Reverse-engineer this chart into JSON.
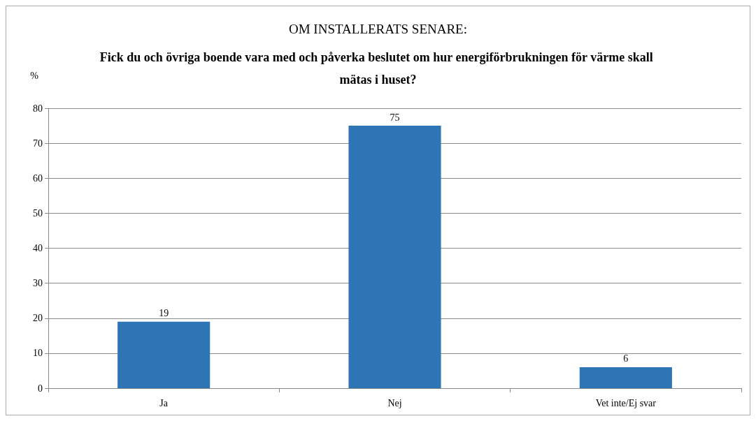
{
  "chart_data": {
    "type": "bar",
    "title": "OM INSTALLERATS SENARE:",
    "subtitle": "Fick du och övriga boende vara med och påverka beslutet om hur energiförbrukningen för värme skall mätas i huset?",
    "ylabel": "%",
    "categories": [
      "Ja",
      "Nej",
      "Vet inte/Ej svar"
    ],
    "values": [
      19,
      75,
      6
    ],
    "color": "#2e75b6",
    "ylim": [
      0,
      80
    ],
    "yticks": [
      0,
      10,
      20,
      30,
      40,
      50,
      60,
      70,
      80
    ],
    "grid": "y",
    "data_labels": true
  }
}
